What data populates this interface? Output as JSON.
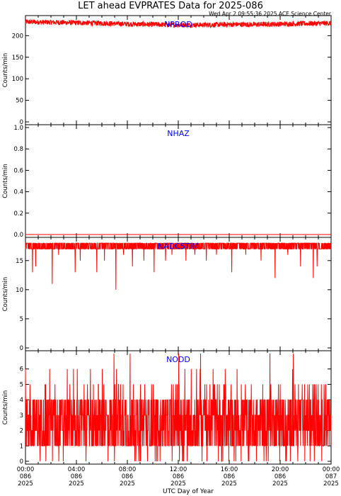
{
  "header": {
    "title": "LET ahead EVPRATES Data for 2025-086",
    "timestamp": "Wed Apr  2 09:55:36 2025 ACE Science Center"
  },
  "x_axis": {
    "label": "UTC Day of Year",
    "ticks": [
      {
        "time": "00:00",
        "doy": "086",
        "year": "2025"
      },
      {
        "time": "04:00",
        "doy": "086",
        "year": "2025"
      },
      {
        "time": "08:00",
        "doy": "086",
        "year": "2025"
      },
      {
        "time": "12:00",
        "doy": "086",
        "year": "2025"
      },
      {
        "time": "16:00",
        "doy": "086",
        "year": "2025"
      },
      {
        "time": "20:00",
        "doy": "086",
        "year": "2025"
      },
      {
        "time": "00:00",
        "doy": "087",
        "year": "2025"
      }
    ]
  },
  "colors": {
    "series": "#ff0000",
    "label": "#0000ff",
    "axes": "#000000",
    "background": "#ffffff"
  },
  "chart_data": [
    {
      "type": "line",
      "label": "NPROD",
      "ylabel": "Counts/min",
      "xlim": [
        0,
        24
      ],
      "ylim": [
        0,
        240
      ],
      "yticks": [
        "0",
        "50",
        "100",
        "150",
        "200"
      ],
      "ytick_values": [
        0,
        50,
        100,
        150,
        200
      ],
      "x": [
        0,
        2,
        4,
        6,
        8,
        10,
        12,
        14,
        16,
        18,
        20,
        22,
        24
      ],
      "values": [
        232,
        231,
        230,
        229,
        227,
        226,
        225,
        225,
        226,
        226,
        227,
        228,
        229
      ],
      "noise_amplitude": 6
    },
    {
      "type": "line",
      "label": "NHAZ",
      "ylabel": "Counts/min",
      "xlim": [
        0,
        24
      ],
      "ylim": [
        0,
        1.0
      ],
      "yticks": [
        "0.0",
        "0.2",
        "0.4",
        "0.6",
        "0.8",
        "1.0"
      ],
      "ytick_values": [
        0,
        0.2,
        0.4,
        0.6,
        0.8,
        1.0
      ],
      "x": [
        0,
        24
      ],
      "values": [
        0,
        0
      ]
    },
    {
      "type": "line",
      "label": "NADCSTIM",
      "ylabel": "Counts/min",
      "xlim": [
        0,
        24
      ],
      "ylim": [
        0,
        18.5
      ],
      "yticks": [
        "0",
        "5",
        "10",
        "15"
      ],
      "ytick_values": [
        0,
        5,
        10,
        15
      ],
      "baseline": [
        17,
        18
      ],
      "dips": [
        {
          "x": 0.55,
          "y": 13
        },
        {
          "x": 0.8,
          "y": 14
        },
        {
          "x": 2.1,
          "y": 11
        },
        {
          "x": 2.6,
          "y": 16
        },
        {
          "x": 3.9,
          "y": 13
        },
        {
          "x": 4.3,
          "y": 15
        },
        {
          "x": 5.6,
          "y": 13
        },
        {
          "x": 6.2,
          "y": 15
        },
        {
          "x": 7.1,
          "y": 10
        },
        {
          "x": 7.7,
          "y": 16
        },
        {
          "x": 8.4,
          "y": 14
        },
        {
          "x": 9.3,
          "y": 15
        },
        {
          "x": 10.1,
          "y": 13
        },
        {
          "x": 11.0,
          "y": 15
        },
        {
          "x": 11.5,
          "y": 16
        },
        {
          "x": 12.6,
          "y": 15
        },
        {
          "x": 13.3,
          "y": 16
        },
        {
          "x": 14.2,
          "y": 15
        },
        {
          "x": 15.0,
          "y": 16
        },
        {
          "x": 16.2,
          "y": 13
        },
        {
          "x": 17.3,
          "y": 16
        },
        {
          "x": 18.5,
          "y": 15
        },
        {
          "x": 19.6,
          "y": 12
        },
        {
          "x": 20.6,
          "y": 16
        },
        {
          "x": 21.6,
          "y": 14
        },
        {
          "x": 22.6,
          "y": 12
        },
        {
          "x": 22.9,
          "y": 14
        }
      ]
    },
    {
      "type": "line",
      "label": "NODD",
      "ylabel": "Counts/min",
      "xlim": [
        0,
        24
      ],
      "ylim": [
        0,
        7
      ],
      "yticks": [
        "0",
        "1",
        "2",
        "3",
        "4",
        "5",
        "6"
      ],
      "ytick_values": [
        0,
        1,
        2,
        3,
        4,
        5,
        6
      ],
      "value_range": [
        0,
        7
      ],
      "typical_range": [
        1,
        4
      ]
    }
  ]
}
